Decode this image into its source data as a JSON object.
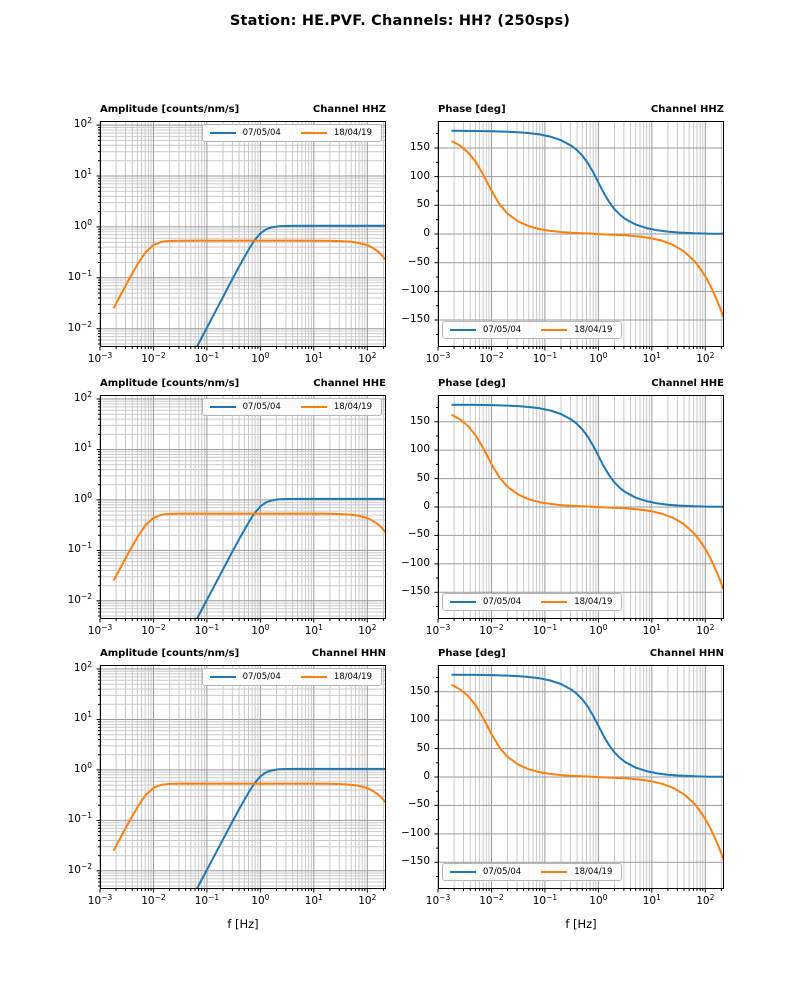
{
  "figure_title": "Station: HE.PVF. Channels: HH? (250sps)",
  "chart_data": {
    "type": "line",
    "layout": "3 rows x 2 cols",
    "channel_titles": [
      "Channel HHZ",
      "Channel HHE",
      "Channel HHN"
    ],
    "xlabel": "f [Hz]",
    "x_scale": "log",
    "x_range_log10": [
      -3,
      2.35
    ],
    "x_major_tick_exponents": [
      "−3",
      "−2",
      "−1",
      "0",
      "1",
      "2"
    ],
    "x_major_tick_log10": [
      -3,
      -2,
      -1,
      0,
      1,
      2
    ],
    "log_base_label": "10",
    "amplitude_axis": {
      "title": "Amplitude [counts/nm/s]",
      "y_scale": "log",
      "y_range_log10": [
        -2.36,
        2.08
      ],
      "y_major_tick_exponents": [
        "2",
        "1",
        "0",
        "−1",
        "−2"
      ],
      "y_major_tick_log10": [
        2,
        1,
        0,
        -1,
        -2
      ]
    },
    "phase_axis": {
      "title": "Phase [deg]",
      "y_range": [
        -197,
        197
      ],
      "y_major_tick_labels": [
        "150",
        "100",
        "50",
        "0",
        "−50",
        "−100",
        "−150"
      ],
      "y_major_tick_values": [
        150,
        100,
        50,
        0,
        -50,
        -100,
        -150
      ],
      "y_minor_tick_values": [
        -175,
        -125,
        -75,
        -25,
        25,
        75,
        125,
        175
      ]
    },
    "legend": {
      "amplitude_position": "upper right",
      "phase_position": "lower left"
    },
    "series": [
      {
        "label": "07/05/04",
        "color": "#1f77b4",
        "amplitude_log10": [
          [
            -1.32,
            -2.62
          ],
          [
            -1.2,
            -2.38
          ],
          [
            -1.1,
            -2.18
          ],
          [
            -0.95,
            -1.88
          ],
          [
            -0.8,
            -1.58
          ],
          [
            -0.65,
            -1.28
          ],
          [
            -0.5,
            -0.981
          ],
          [
            -0.35,
            -0.686
          ],
          [
            -0.2,
            -0.411
          ],
          [
            -0.1,
            -0.251
          ],
          [
            0,
            -0.129
          ],
          [
            0.1,
            -0.052
          ],
          [
            0.2,
            -0.011
          ],
          [
            0.35,
            0.013
          ],
          [
            0.5,
            0.019
          ],
          [
            0.7,
            0.021
          ],
          [
            1.2,
            0.021
          ],
          [
            1.8,
            0.021
          ],
          [
            2.35,
            0.021
          ]
        ],
        "phase_deg": [
          [
            -2.745,
            179.9
          ],
          [
            -2.3,
            179.6
          ],
          [
            -2.0,
            179.2
          ],
          [
            -1.7,
            178.4
          ],
          [
            -1.5,
            177.4
          ],
          [
            -1.3,
            175.9
          ],
          [
            -1.1,
            173.6
          ],
          [
            -0.9,
            169.8
          ],
          [
            -0.7,
            163.6
          ],
          [
            -0.5,
            153.6
          ],
          [
            -0.4,
            146.2
          ],
          [
            -0.3,
            136.6
          ],
          [
            -0.2,
            124.0
          ],
          [
            -0.1,
            108.2
          ],
          [
            0,
            90
          ],
          [
            0.1,
            71.8
          ],
          [
            0.2,
            56.0
          ],
          [
            0.3,
            43.4
          ],
          [
            0.4,
            33.8
          ],
          [
            0.5,
            26.4
          ],
          [
            0.7,
            16.4
          ],
          [
            0.9,
            10.3
          ],
          [
            1.1,
            6.4
          ],
          [
            1.3,
            4.1
          ],
          [
            1.5,
            2.6
          ],
          [
            1.8,
            1.3
          ],
          [
            2.1,
            0.6
          ],
          [
            2.35,
            0.4
          ]
        ]
      },
      {
        "label": "18/04/19",
        "color": "#ff7f0e",
        "amplitude_log10": [
          [
            -2.745,
            -1.6
          ],
          [
            -2.6,
            -1.31
          ],
          [
            -2.45,
            -1.016
          ],
          [
            -2.3,
            -0.738
          ],
          [
            -2.15,
            -0.503
          ],
          [
            -2.0,
            -0.355
          ],
          [
            -1.85,
            -0.295
          ],
          [
            -1.7,
            -0.276
          ],
          [
            -1.5,
            -0.271
          ],
          [
            -1.2,
            -0.27
          ],
          [
            -0.6,
            -0.27
          ],
          [
            0,
            -0.27
          ],
          [
            0.6,
            -0.27
          ],
          [
            1.2,
            -0.271
          ],
          [
            1.5,
            -0.28
          ],
          [
            1.7,
            -0.294
          ],
          [
            1.85,
            -0.317
          ],
          [
            2.0,
            -0.361
          ],
          [
            2.1,
            -0.411
          ],
          [
            2.2,
            -0.484
          ],
          [
            2.28,
            -0.564
          ],
          [
            2.35,
            -0.655
          ]
        ],
        "phase_deg": [
          [
            -2.745,
            162.2
          ],
          [
            -2.6,
            154.8
          ],
          [
            -2.45,
            143.5
          ],
          [
            -2.3,
            126.8
          ],
          [
            -2.15,
            103.0
          ],
          [
            -2.08,
            90.0
          ],
          [
            -2.0,
            75.5
          ],
          [
            -1.85,
            51.9
          ],
          [
            -1.7,
            35.5
          ],
          [
            -1.5,
            21.8
          ],
          [
            -1.3,
            13.6
          ],
          [
            -1.1,
            8.5
          ],
          [
            -0.9,
            5.4
          ],
          [
            -0.7,
            3.4
          ],
          [
            -0.5,
            2.1
          ],
          [
            -0.2,
            0.9
          ],
          [
            0,
            -0.1
          ],
          [
            0.5,
            -2.2
          ],
          [
            0.8,
            -4.7
          ],
          [
            1.0,
            -7.6
          ],
          [
            1.2,
            -12.1
          ],
          [
            1.4,
            -19.1
          ],
          [
            1.6,
            -30.2
          ],
          [
            1.8,
            -47.4
          ],
          [
            1.9,
            -59.4
          ],
          [
            2.0,
            -73.7
          ],
          [
            2.1,
            -91.0
          ],
          [
            2.2,
            -111.4
          ],
          [
            2.28,
            -129.7
          ],
          [
            2.35,
            -146.9
          ]
        ]
      }
    ]
  },
  "style_colors": {
    "grid_major": "#9a9a9a",
    "grid_minor": "#c9c9c9",
    "spine": "#000000"
  }
}
